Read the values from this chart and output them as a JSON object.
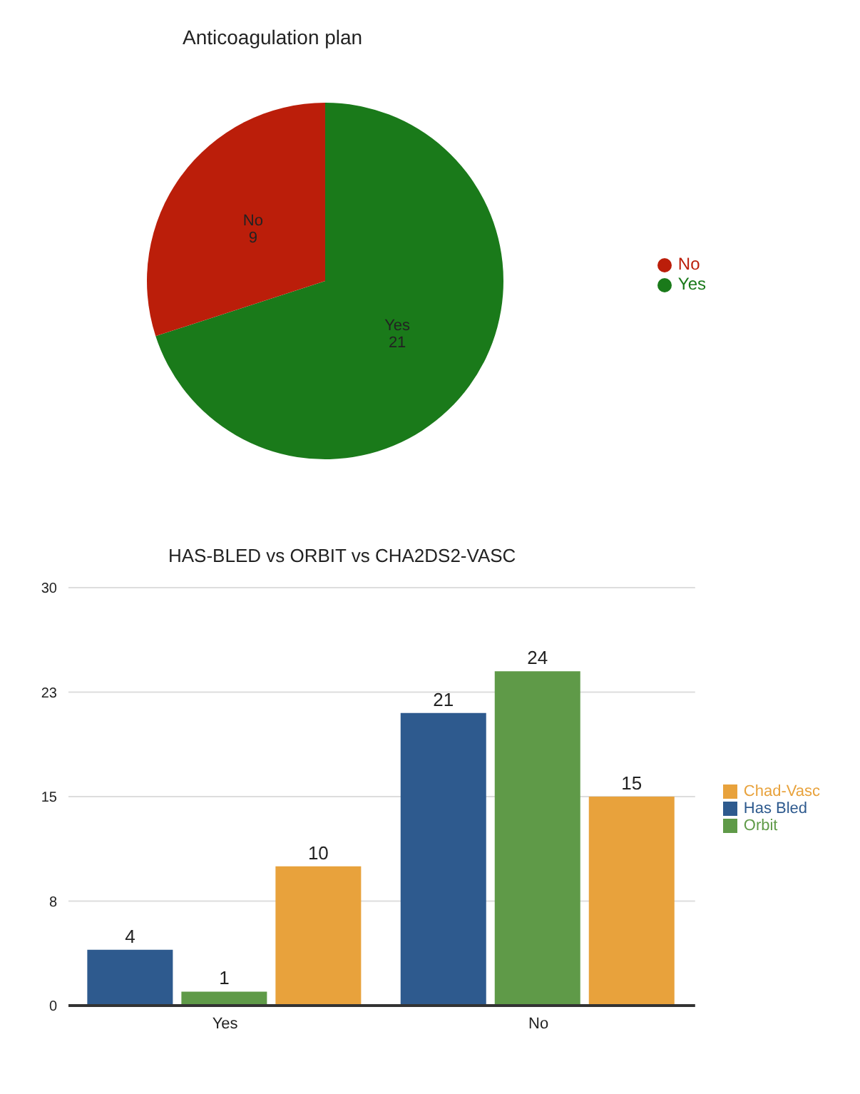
{
  "chart_data": [
    {
      "type": "pie",
      "title": "Anticoagulation plan",
      "categories": [
        "Yes",
        "No"
      ],
      "values": [
        21,
        9
      ],
      "colors": [
        "#1a7a1a",
        "#bb1e0a"
      ],
      "data_labels": true,
      "legend": "right"
    },
    {
      "type": "bar",
      "title": "HAS-BLED vs ORBIT vs CHA2DS2-VASC",
      "categories": [
        "Yes",
        "No"
      ],
      "series": [
        {
          "name": "Has Bled",
          "color": "#2e5a8e",
          "values": [
            4,
            21
          ]
        },
        {
          "name": "Orbit",
          "color": "#5f9a48",
          "values": [
            1,
            24
          ]
        },
        {
          "name": "Chad-Vasc",
          "color": "#e8a23c",
          "values": [
            10,
            15
          ]
        }
      ],
      "ylim": [
        0,
        30
      ],
      "yticks": [
        0,
        {
          "value": 7.5,
          "label": "8"
        },
        15,
        {
          "value": 22.5,
          "label": "23"
        },
        30
      ],
      "grid": "y",
      "legend": "right",
      "data_labels": true
    }
  ]
}
